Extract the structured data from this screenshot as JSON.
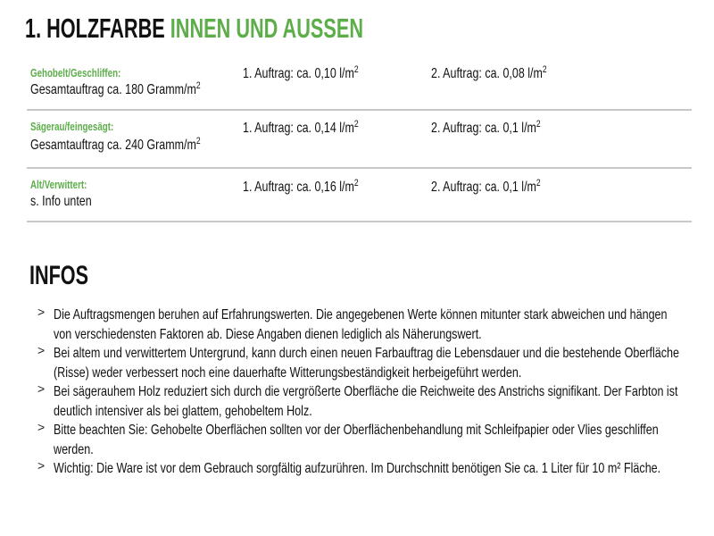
{
  "title": {
    "part1": "1. HOLZFARBE",
    "part2": "INNEN UND AUSSEN"
  },
  "colors": {
    "accent_green": "#5dae4b",
    "text": "#111111",
    "divider": "#c8c8c8"
  },
  "table": {
    "rows": [
      {
        "label": "Gehobelt/Geschliffen:",
        "detail": "Gesamtauftrag ca. 180 Gramm/m",
        "detail_sup": "2",
        "first": "1. Auftrag: ca. 0,10 l/m",
        "first_sup": "2",
        "second": "2. Auftrag: ca. 0,08 l/m",
        "second_sup": "2"
      },
      {
        "label": "Sägerau/feingesägt:",
        "detail": "Gesamtauftrag ca. 240 Gramm/m",
        "detail_sup": "2",
        "first": "1. Auftrag: ca. 0,14 l/m",
        "first_sup": "2",
        "second": "2. Auftrag: ca. 0,1 l/m",
        "second_sup": "2"
      },
      {
        "label": "Alt/Verwittert:",
        "detail": "s. Info unten",
        "first": "1. Auftrag: ca. 0,16 l/m",
        "first_sup": "2",
        "second": "2. Auftrag: ca. 0,1 l/m",
        "second_sup": "2"
      }
    ]
  },
  "infos": {
    "heading": "INFOS",
    "bullet_icon": "chevron-right-icon",
    "items": [
      "Die Auftragsmengen beruhen auf Erfahrungswerten. Die angegebenen Werte können mitunter stark abweichen und hängen von verschiedensten Faktoren ab. Diese Angaben dienen lediglich als Näherungswert.",
      "Bei altem und verwittertem Untergrund, kann durch einen neuen Farbauftrag die Lebensdauer und die bestehende Oberfläche (Risse) weder verbessert noch eine dauerhafte Witterungsbeständigkeit herbeigeführt werden.",
      "Bei sägerauhem Holz reduziert sich durch die vergrößerte Oberfläche die Reichweite des Anstrichs signifikant. Der Farbton ist deutlich intensiver als bei glattem, gehobeltem Holz.",
      "Bitte beachten Sie: Gehobelte Oberflächen sollten vor der Oberflächenbehandlung mit Schleifpapier oder Vlies geschliffen werden.",
      "Wichtig: Die Ware ist vor dem Gebrauch sorgfältig aufzurühren. Im Durchschnitt benötigen Sie ca. 1 Liter für 10 m² Fläche."
    ]
  }
}
